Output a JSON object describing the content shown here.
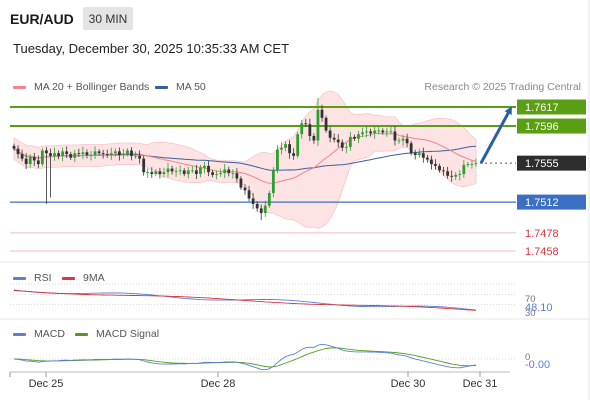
{
  "header": {
    "symbol": "EUR/AUD",
    "timeframe": "30 MIN",
    "datetime": "Tuesday, December 30, 2025 10:35:33 AM CET",
    "copyright": "Research © 2025 Trading Central"
  },
  "legend": {
    "ma20": "MA 20 + Bollinger Bands",
    "ma50": "MA 50",
    "rsi": "RSI",
    "rsi_ma": "9MA",
    "macd": "MACD",
    "macd_signal": "MACD Signal"
  },
  "colors": {
    "resistance": "#5a9e14",
    "current": "#2d2d2d",
    "support": "#3a6fc4",
    "pivot_red": "#d9363e",
    "ma20": "#f0868c",
    "ma50": "#3a5fa0",
    "bollinger_fill": "#fde3e3",
    "arrow": "#2a5ea8",
    "bull_candle": "#2e9e32",
    "bear_candle": "#333333"
  },
  "chart_data": {
    "type": "candlestick",
    "x_tick_labels": [
      "Dec 25",
      "Dec 28",
      "Dec 30",
      "Dec 31"
    ],
    "y_range": [
      1.7445,
      1.7645
    ],
    "levels": [
      {
        "label": "1.7617",
        "value": 1.7617,
        "kind": "resistance"
      },
      {
        "label": "1.7596",
        "value": 1.7596,
        "kind": "resistance"
      },
      {
        "label": "1.7555",
        "value": 1.7555,
        "kind": "current"
      },
      {
        "label": "1.7512",
        "value": 1.7512,
        "kind": "support"
      },
      {
        "label": "1.7478",
        "value": 1.7478,
        "kind": "pivot"
      },
      {
        "label": "1.7458",
        "value": 1.7458,
        "kind": "pivot"
      }
    ],
    "close": [
      1.7571,
      1.7565,
      1.756,
      1.7554,
      1.7562,
      1.7558,
      1.7554,
      1.7569,
      1.7566,
      1.7563,
      1.7566,
      1.7563,
      1.7568,
      1.7565,
      1.7561,
      1.7566,
      1.7565,
      1.7567,
      1.7564,
      1.7564,
      1.7568,
      1.7566,
      1.7565,
      1.7564,
      1.7566,
      1.7568,
      1.7564,
      1.7565,
      1.7569,
      1.7563,
      1.7563,
      1.756,
      1.7545,
      1.7545,
      1.7543,
      1.7546,
      1.7543,
      1.7545,
      1.7549,
      1.7546,
      1.7546,
      1.7547,
      1.7543,
      1.7547,
      1.7547,
      1.7543,
      1.755,
      1.7552,
      1.7545,
      1.7542,
      1.7543,
      1.7544,
      1.7548,
      1.7544,
      1.7544,
      1.7538,
      1.7528,
      1.7525,
      1.7516,
      1.751,
      1.7505,
      1.75,
      1.7508,
      1.7522,
      1.7547,
      1.757,
      1.7572,
      1.7576,
      1.7566,
      1.7563,
      1.7587,
      1.7599,
      1.7598,
      1.7585,
      1.758,
      1.7614,
      1.7605,
      1.7591,
      1.7583,
      1.7581,
      1.7578,
      1.7572,
      1.7573,
      1.7584,
      1.7582,
      1.7587,
      1.7589,
      1.759,
      1.7588,
      1.7591,
      1.7591,
      1.7589,
      1.759,
      1.759,
      1.758,
      1.758,
      1.7582,
      1.7577,
      1.7566,
      1.7564,
      1.7566,
      1.7561,
      1.7559,
      1.7554,
      1.7552,
      1.7547,
      1.7546,
      1.7541,
      1.754,
      1.7542,
      1.7543,
      1.7553,
      1.7554,
      1.7554,
      1.7555
    ],
    "ma20_visible": true,
    "ma50_visible": true,
    "bollinger_visible": true,
    "projection": "up toward 1.7617",
    "rsi": {
      "value_label": "48.10",
      "level_labels": [
        "70",
        "30"
      ],
      "current": 48.1
    },
    "macd": {
      "value_label": "-0.00",
      "zero_label": "0",
      "current": -0.0
    }
  }
}
